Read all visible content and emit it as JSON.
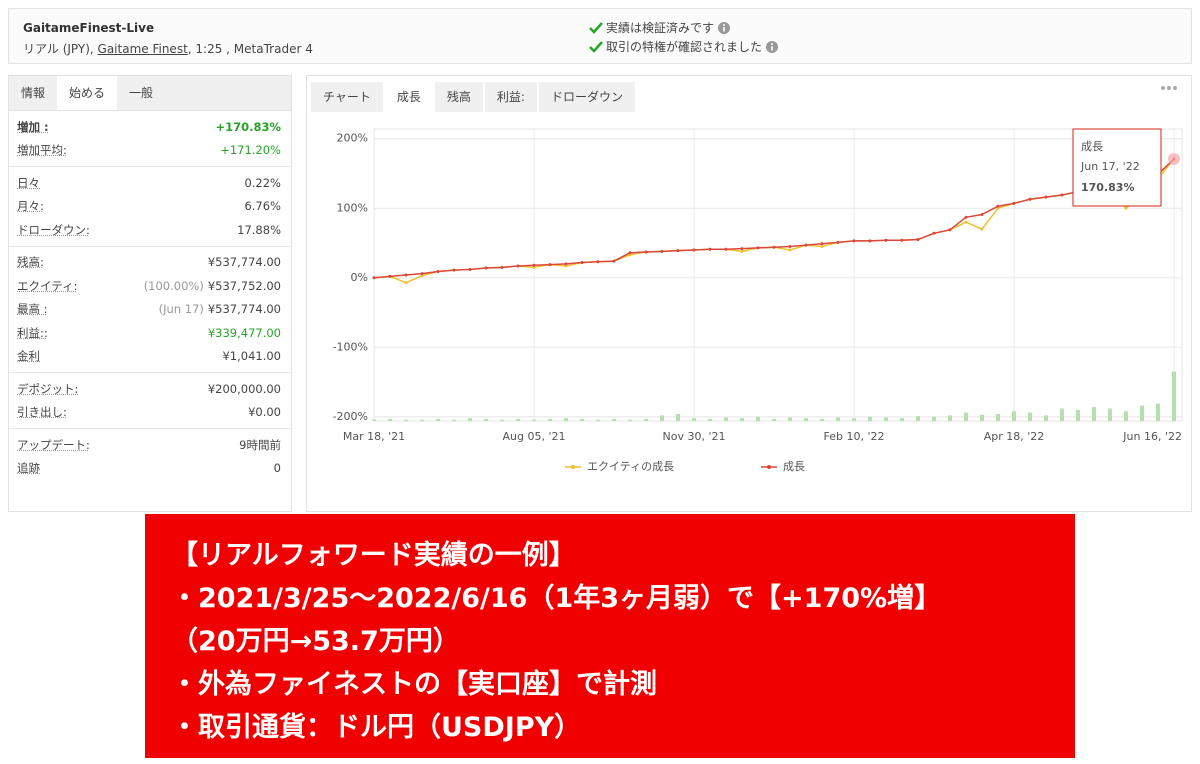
{
  "header": {
    "title": "GaitameFinest-Live",
    "account_type": "リアル (JPY), ",
    "broker": "Gaitame Finest",
    "details": ", 1:25 , MetaTrader 4",
    "badges": [
      "実績は検証済みです",
      "取引の特権が確認されました"
    ]
  },
  "left_tabs": {
    "items": [
      "情報",
      "始める",
      "一般"
    ],
    "active": 1
  },
  "stats": [
    [
      {
        "label": "増加 :",
        "value": "+170.83%",
        "color": "#27a327"
      },
      {
        "label": "増加平均:",
        "value": "+171.20%",
        "color": "#27a327"
      }
    ],
    [
      {
        "label": "日々",
        "value": "0.22%"
      },
      {
        "label": "月々:",
        "value": "6.76%"
      },
      {
        "label": "ドローダウン:",
        "value": "17.88%"
      }
    ],
    [
      {
        "label": "残高:",
        "value": "¥537,774.00"
      },
      {
        "label": "エクイティ:",
        "note": "(100.00%)",
        "value": "¥537,752.00"
      },
      {
        "label": "最高 :",
        "note": "(Jun 17)",
        "value": "¥537,774.00"
      },
      {
        "label": "利益::",
        "value": "¥339,477.00",
        "color": "#27a327"
      },
      {
        "label": "金利",
        "value": "¥1,041.00"
      }
    ],
    [
      {
        "label": "デポジット:",
        "value": "¥200,000.00"
      },
      {
        "label": "引き出し:",
        "value": "¥0.00"
      }
    ],
    [
      {
        "label": "アップデート:",
        "value": "9時間前"
      },
      {
        "label": "追跡",
        "value": "0"
      }
    ]
  ],
  "chart_tabs": {
    "items": [
      "チャート",
      "成長",
      "残高",
      "利益:",
      "ドローダウン"
    ],
    "active": 1
  },
  "chart_data": {
    "type": "line",
    "categories": [
      "Mar 18, '21",
      null,
      null,
      null,
      null,
      null,
      null,
      null,
      null,
      null,
      "Aug 05, '21",
      null,
      null,
      null,
      null,
      null,
      null,
      null,
      null,
      null,
      "Nov 30, '21",
      null,
      null,
      null,
      null,
      null,
      null,
      null,
      null,
      null,
      "Feb 10, '22",
      null,
      null,
      null,
      null,
      null,
      null,
      null,
      null,
      null,
      "Apr 18, '22",
      null,
      null,
      null,
      null,
      null,
      null,
      null,
      null,
      null,
      "Jun 16, '22"
    ],
    "series": [
      {
        "name": "エクイティの成長",
        "color": "#f0c030",
        "values": [
          0,
          2,
          -7,
          3,
          9,
          11,
          12,
          14,
          15,
          17,
          15,
          19,
          17,
          22,
          23,
          24,
          33,
          37,
          38,
          39,
          40,
          41,
          41,
          38,
          43,
          44,
          40,
          47,
          45,
          51,
          53,
          53,
          54,
          54,
          55,
          64,
          69,
          80,
          70,
          100,
          107,
          113,
          116,
          119,
          124,
          127,
          128,
          100,
          120,
          143,
          170.82
        ]
      },
      {
        "name": "成長",
        "color": "#d9483b",
        "values": [
          0,
          2,
          4,
          6,
          9,
          11,
          12,
          14,
          15,
          17,
          18,
          19,
          20,
          22,
          23,
          24,
          36,
          37,
          38,
          39,
          40,
          41,
          41,
          42,
          43,
          44,
          45,
          47,
          49,
          51,
          53,
          53,
          54,
          54,
          55,
          64,
          69,
          87,
          91,
          103,
          107,
          113,
          116,
          119,
          124,
          127,
          131,
          136,
          140,
          149,
          170.83
        ],
        "value_labels": [
          null,
          null,
          null,
          null,
          null,
          null,
          null,
          null,
          null,
          null,
          null,
          null,
          null,
          null,
          null,
          null,
          null,
          null,
          null,
          null,
          null,
          null,
          null,
          null,
          null,
          null,
          null,
          null,
          null,
          null,
          null,
          null,
          null,
          null,
          null,
          null,
          null,
          null,
          null,
          null,
          null,
          null,
          null,
          null,
          null,
          null,
          null,
          null,
          null,
          null,
          "170.83%"
        ]
      },
      {
        "type": "bar",
        "color": "#b5dfae",
        "values": [
          2,
          3,
          2,
          2,
          3,
          2,
          4,
          3,
          2,
          3,
          2,
          3,
          4,
          3,
          2,
          3,
          2,
          3,
          8,
          10,
          4,
          3,
          5,
          4,
          6,
          3,
          5,
          4,
          3,
          5,
          4,
          6,
          5,
          4,
          7,
          6,
          8,
          12,
          9,
          10,
          14,
          12,
          8,
          18,
          16,
          20,
          18,
          14,
          22,
          25,
          71
        ]
      }
    ],
    "ylim": [
      -206,
      214
    ],
    "yticks": [
      {
        "value": 200,
        "label": "200%"
      },
      {
        "value": 100,
        "label": "100%"
      },
      {
        "value": 0,
        "label": "0%"
      },
      {
        "value": -100,
        "label": "-100%"
      },
      {
        "value": -200,
        "label": "-200%"
      }
    ],
    "grid": true,
    "tooltip": {
      "title": "成長",
      "date": "Jun 17, '22"
    }
  },
  "banner": [
    "【リアルフォワード実績の一例】",
    "・2021/3/25〜2022/6/16（1年3ヶ月弱）で【+170%増】",
    "（20万円→53.7万円）",
    "・外為ファイネストの【実口座】で計測",
    "・取引通貨：ドル円（USDJPY）"
  ]
}
